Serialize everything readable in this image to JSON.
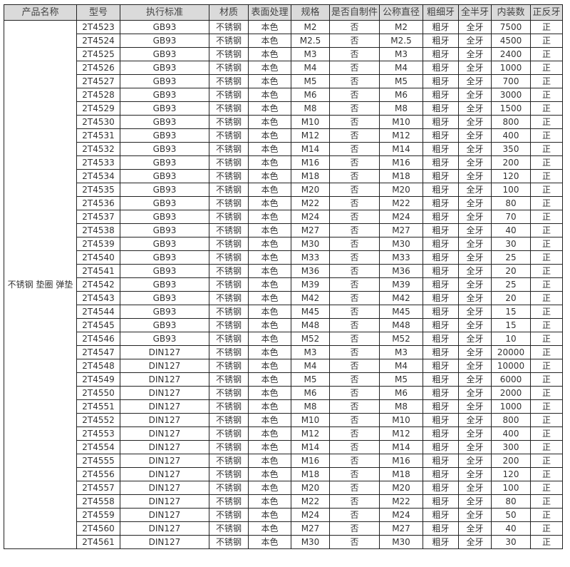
{
  "headers": [
    "产品名称",
    "型号",
    "执行标准",
    "材质",
    "表面处理",
    "规格",
    "是否自制件",
    "公称直径",
    "粗细牙",
    "全半牙",
    "内装数",
    "正反牙"
  ],
  "product_name": "不锈钢 垫圈 弹垫",
  "colors": {
    "header_bg": "#dadada",
    "border": "#222222"
  },
  "rows": [
    [
      "2T4523",
      "GB93",
      "不锈钢",
      "本色",
      "M2",
      "否",
      "M2",
      "粗牙",
      "全牙",
      "7500",
      "正"
    ],
    [
      "2T4524",
      "GB93",
      "不锈钢",
      "本色",
      "M2.5",
      "否",
      "M2.5",
      "粗牙",
      "全牙",
      "4500",
      "正"
    ],
    [
      "2T4525",
      "GB93",
      "不锈钢",
      "本色",
      "M3",
      "否",
      "M3",
      "粗牙",
      "全牙",
      "2400",
      "正"
    ],
    [
      "2T4526",
      "GB93",
      "不锈钢",
      "本色",
      "M4",
      "否",
      "M4",
      "粗牙",
      "全牙",
      "1000",
      "正"
    ],
    [
      "2T4527",
      "GB93",
      "不锈钢",
      "本色",
      "M5",
      "否",
      "M5",
      "粗牙",
      "全牙",
      "700",
      "正"
    ],
    [
      "2T4528",
      "GB93",
      "不锈钢",
      "本色",
      "M6",
      "否",
      "M6",
      "粗牙",
      "全牙",
      "3000",
      "正"
    ],
    [
      "2T4529",
      "GB93",
      "不锈钢",
      "本色",
      "M8",
      "否",
      "M8",
      "粗牙",
      "全牙",
      "1500",
      "正"
    ],
    [
      "2T4530",
      "GB93",
      "不锈钢",
      "本色",
      "M10",
      "否",
      "M10",
      "粗牙",
      "全牙",
      "800",
      "正"
    ],
    [
      "2T4531",
      "GB93",
      "不锈钢",
      "本色",
      "M12",
      "否",
      "M12",
      "粗牙",
      "全牙",
      "400",
      "正"
    ],
    [
      "2T4532",
      "GB93",
      "不锈钢",
      "本色",
      "M14",
      "否",
      "M14",
      "粗牙",
      "全牙",
      "350",
      "正"
    ],
    [
      "2T4533",
      "GB93",
      "不锈钢",
      "本色",
      "M16",
      "否",
      "M16",
      "粗牙",
      "全牙",
      "200",
      "正"
    ],
    [
      "2T4534",
      "GB93",
      "不锈钢",
      "本色",
      "M18",
      "否",
      "M18",
      "粗牙",
      "全牙",
      "120",
      "正"
    ],
    [
      "2T4535",
      "GB93",
      "不锈钢",
      "本色",
      "M20",
      "否",
      "M20",
      "粗牙",
      "全牙",
      "100",
      "正"
    ],
    [
      "2T4536",
      "GB93",
      "不锈钢",
      "本色",
      "M22",
      "否",
      "M22",
      "粗牙",
      "全牙",
      "80",
      "正"
    ],
    [
      "2T4537",
      "GB93",
      "不锈钢",
      "本色",
      "M24",
      "否",
      "M24",
      "粗牙",
      "全牙",
      "70",
      "正"
    ],
    [
      "2T4538",
      "GB93",
      "不锈钢",
      "本色",
      "M27",
      "否",
      "M27",
      "粗牙",
      "全牙",
      "40",
      "正"
    ],
    [
      "2T4539",
      "GB93",
      "不锈钢",
      "本色",
      "M30",
      "否",
      "M30",
      "粗牙",
      "全牙",
      "30",
      "正"
    ],
    [
      "2T4540",
      "GB93",
      "不锈钢",
      "本色",
      "M33",
      "否",
      "M33",
      "粗牙",
      "全牙",
      "25",
      "正"
    ],
    [
      "2T4541",
      "GB93",
      "不锈钢",
      "本色",
      "M36",
      "否",
      "M36",
      "粗牙",
      "全牙",
      "20",
      "正"
    ],
    [
      "2T4542",
      "GB93",
      "不锈钢",
      "本色",
      "M39",
      "否",
      "M39",
      "粗牙",
      "全牙",
      "25",
      "正"
    ],
    [
      "2T4543",
      "GB93",
      "不锈钢",
      "本色",
      "M42",
      "否",
      "M42",
      "粗牙",
      "全牙",
      "20",
      "正"
    ],
    [
      "2T4544",
      "GB93",
      "不锈钢",
      "本色",
      "M45",
      "否",
      "M45",
      "粗牙",
      "全牙",
      "15",
      "正"
    ],
    [
      "2T4545",
      "GB93",
      "不锈钢",
      "本色",
      "M48",
      "否",
      "M48",
      "粗牙",
      "全牙",
      "15",
      "正"
    ],
    [
      "2T4546",
      "GB93",
      "不锈钢",
      "本色",
      "M52",
      "否",
      "M52",
      "粗牙",
      "全牙",
      "10",
      "正"
    ],
    [
      "2T4547",
      "DIN127",
      "不锈钢",
      "本色",
      "M3",
      "否",
      "M3",
      "粗牙",
      "全牙",
      "20000",
      "正"
    ],
    [
      "2T4548",
      "DIN127",
      "不锈钢",
      "本色",
      "M4",
      "否",
      "M4",
      "粗牙",
      "全牙",
      "10000",
      "正"
    ],
    [
      "2T4549",
      "DIN127",
      "不锈钢",
      "本色",
      "M5",
      "否",
      "M5",
      "粗牙",
      "全牙",
      "6000",
      "正"
    ],
    [
      "2T4550",
      "DIN127",
      "不锈钢",
      "本色",
      "M6",
      "否",
      "M6",
      "粗牙",
      "全牙",
      "2000",
      "正"
    ],
    [
      "2T4551",
      "DIN127",
      "不锈钢",
      "本色",
      "M8",
      "否",
      "M8",
      "粗牙",
      "全牙",
      "1000",
      "正"
    ],
    [
      "2T4552",
      "DIN127",
      "不锈钢",
      "本色",
      "M10",
      "否",
      "M10",
      "粗牙",
      "全牙",
      "800",
      "正"
    ],
    [
      "2T4553",
      "DIN127",
      "不锈钢",
      "本色",
      "M12",
      "否",
      "M12",
      "粗牙",
      "全牙",
      "400",
      "正"
    ],
    [
      "2T4554",
      "DIN127",
      "不锈钢",
      "本色",
      "M14",
      "否",
      "M14",
      "粗牙",
      "全牙",
      "300",
      "正"
    ],
    [
      "2T4555",
      "DIN127",
      "不锈钢",
      "本色",
      "M16",
      "否",
      "M16",
      "粗牙",
      "全牙",
      "200",
      "正"
    ],
    [
      "2T4556",
      "DIN127",
      "不锈钢",
      "本色",
      "M18",
      "否",
      "M18",
      "粗牙",
      "全牙",
      "120",
      "正"
    ],
    [
      "2T4557",
      "DIN127",
      "不锈钢",
      "本色",
      "M20",
      "否",
      "M20",
      "粗牙",
      "全牙",
      "100",
      "正"
    ],
    [
      "2T4558",
      "DIN127",
      "不锈钢",
      "本色",
      "M22",
      "否",
      "M22",
      "粗牙",
      "全牙",
      "80",
      "正"
    ],
    [
      "2T4559",
      "DIN127",
      "不锈钢",
      "本色",
      "M24",
      "否",
      "M24",
      "粗牙",
      "全牙",
      "50",
      "正"
    ],
    [
      "2T4560",
      "DIN127",
      "不锈钢",
      "本色",
      "M27",
      "否",
      "M27",
      "粗牙",
      "全牙",
      "40",
      "正"
    ],
    [
      "2T4561",
      "DIN127",
      "不锈钢",
      "本色",
      "M30",
      "否",
      "M30",
      "粗牙",
      "全牙",
      "30",
      "正"
    ]
  ]
}
